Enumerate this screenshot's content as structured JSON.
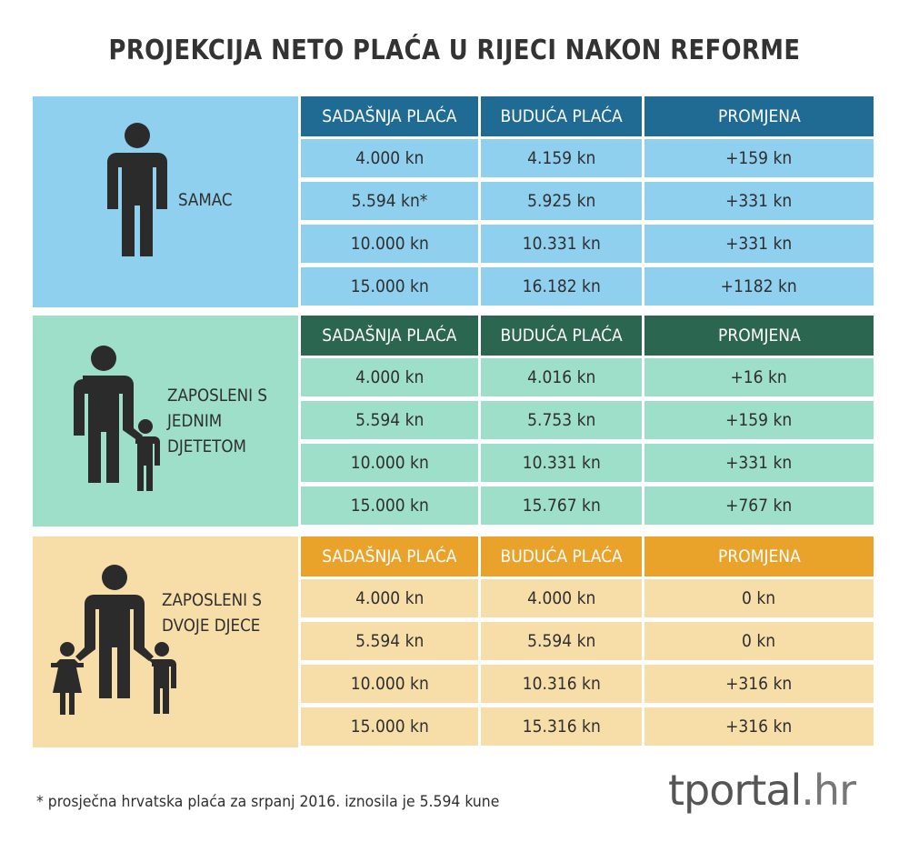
{
  "title": "PROJEKCIJA NETO  PLAĆA U RIJECI NAKON REFORME",
  "columns": [
    "SADAŠNJA PLAĆA",
    "BUDUĆA PLAĆA",
    "PROMJENA"
  ],
  "sections": [
    {
      "label": "SAMAC",
      "icon": "single-person-icon",
      "colors": {
        "panel": "#8fd0ef",
        "header": "#1f6b94"
      },
      "rows": [
        [
          "4.000 kn",
          "4.159 kn",
          "+159 kn"
        ],
        [
          "5.594 kn*",
          "5.925 kn",
          "+331 kn"
        ],
        [
          "10.000 kn",
          "10.331 kn",
          "+331 kn"
        ],
        [
          "15.000 kn",
          "16.182 kn",
          "+1182 kn"
        ]
      ]
    },
    {
      "label": "ZAPOSLENI S\nJEDNIM\nDJETETOM",
      "icon": "parent-with-one-child-icon",
      "colors": {
        "panel": "#9ddfc9",
        "header": "#2b6651"
      },
      "rows": [
        [
          "4.000 kn",
          "4.016 kn",
          "+16 kn"
        ],
        [
          "5.594 kn",
          "5.753 kn",
          "+159 kn"
        ],
        [
          "10.000 kn",
          "10.331 kn",
          "+331 kn"
        ],
        [
          "15.000 kn",
          "15.767 kn",
          "+767 kn"
        ]
      ]
    },
    {
      "label": "ZAPOSLENI S\nDVOJE DJECE",
      "icon": "parent-with-two-children-icon",
      "colors": {
        "panel": "#f7dea8",
        "header": "#eaa32a"
      },
      "rows": [
        [
          "4.000 kn",
          "4.000 kn",
          "0 kn"
        ],
        [
          "5.594 kn",
          "5.594 kn",
          "0 kn"
        ],
        [
          "10.000 kn",
          "10.316 kn",
          "+316 kn"
        ],
        [
          "15.000 kn",
          "15.316 kn",
          "+316 kn"
        ]
      ]
    }
  ],
  "footnote": "*  prosječna hrvatska plaća za srpanj 2016. iznosila je 5.594 kune",
  "logo": {
    "main": "tportal",
    "dot": ".",
    "suffix": "hr"
  }
}
